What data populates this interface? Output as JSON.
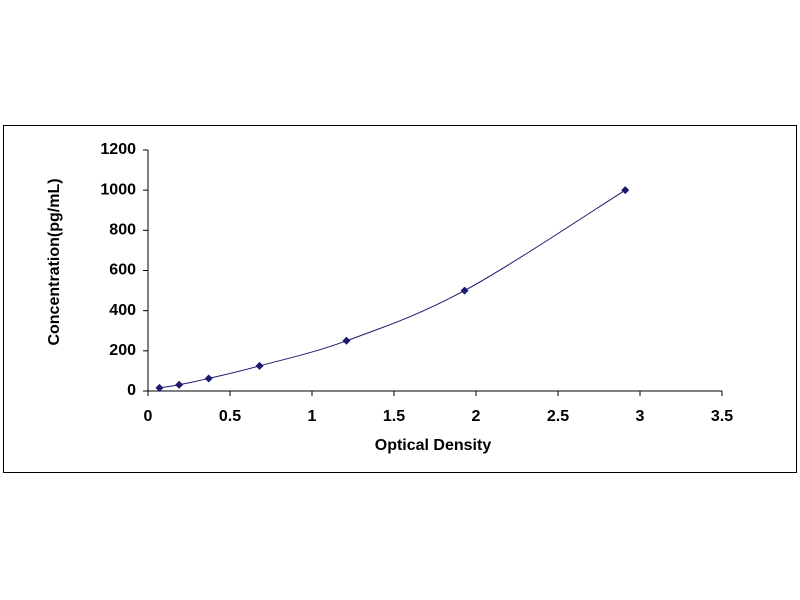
{
  "chart_data": {
    "type": "scatter",
    "x_label": "Optical Density",
    "y_label": "Concentration(pg/mL)",
    "x": [
      0.07,
      0.19,
      0.37,
      0.68,
      1.21,
      1.93,
      2.91
    ],
    "series": [
      {
        "color": "#1a1a6e",
        "values": [
          15.6,
          31.2,
          62.5,
          125,
          250,
          500,
          1000
        ]
      }
    ],
    "smooth_line": true,
    "xlim": [
      0,
      3.5
    ],
    "xticks": [
      0,
      0.5,
      1,
      1.5,
      2,
      2.5,
      3,
      3.5
    ],
    "ylim": [
      0,
      1200
    ],
    "yticks": [
      0,
      200,
      400,
      600,
      800,
      1000,
      1200
    ]
  }
}
